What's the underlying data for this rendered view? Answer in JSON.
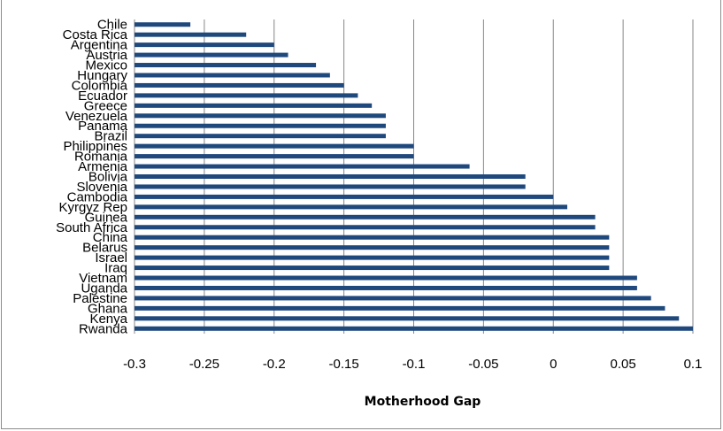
{
  "chart_data": {
    "type": "bar",
    "orientation": "horizontal",
    "categories": [
      "Chile",
      "Costa Rica",
      "Argentina",
      "Austria",
      "Mexico",
      "Hungary",
      "Colombia",
      "Ecuador",
      "Greece",
      "Venezuela",
      "Panama",
      "Brazil",
      "Philippines",
      "Romania",
      "Armenia",
      "Bolivia",
      "Slovenia",
      "Cambodia",
      "Kyrgyz Rep",
      "Guinea",
      "South Africa",
      "China",
      "Belarus",
      "Israel",
      "Iraq",
      "Vietnam",
      "Uganda",
      "Palestine",
      "Ghana",
      "Kenya",
      "Rwanda"
    ],
    "values": [
      -0.26,
      -0.22,
      -0.2,
      -0.19,
      -0.17,
      -0.16,
      -0.15,
      -0.14,
      -0.13,
      -0.12,
      -0.12,
      -0.12,
      -0.1,
      -0.1,
      -0.06,
      -0.02,
      -0.02,
      0.0,
      0.01,
      0.03,
      0.03,
      0.04,
      0.04,
      0.04,
      0.04,
      0.06,
      0.06,
      0.07,
      0.08,
      0.09,
      0.1
    ],
    "xlabel": "Motherhood Gap",
    "ylabel": "",
    "title": "",
    "xlim": [
      -0.3,
      0.1
    ],
    "xticks": [
      "-0.3",
      "-0.25",
      "-0.2",
      "-0.15",
      "-0.1",
      "-0.05",
      "0",
      "0.05",
      "0.1"
    ],
    "grid": "vertical",
    "bar_color": "#1f497d",
    "grid_color": "#868686"
  }
}
